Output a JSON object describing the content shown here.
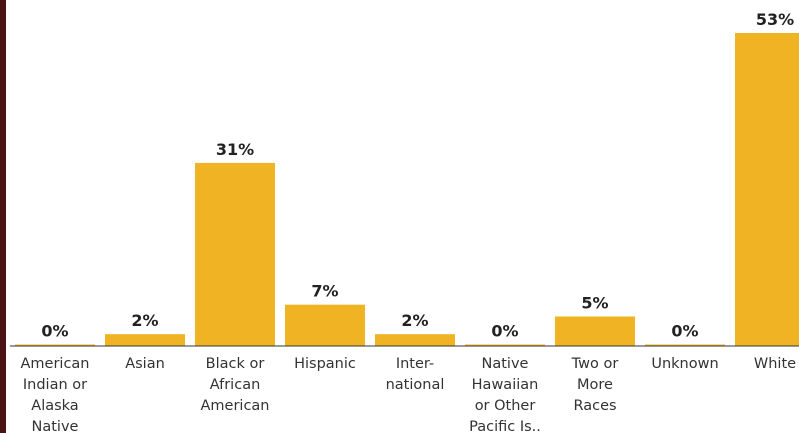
{
  "chart_data": {
    "type": "bar",
    "categories": [
      [
        "American",
        "Indian or",
        "Alaska",
        "Native"
      ],
      [
        "Asian"
      ],
      [
        "Black or",
        "African",
        "American"
      ],
      [
        "Hispanic"
      ],
      [
        "Inter-",
        "national"
      ],
      [
        "Native",
        "Hawaiian",
        "or Other",
        "Pacific Is.."
      ],
      [
        "Two or",
        "More",
        "Races"
      ],
      [
        "Unknown"
      ],
      [
        "White"
      ]
    ],
    "values": [
      0,
      2,
      31,
      7,
      2,
      0,
      5,
      0,
      53
    ],
    "data_labels": [
      "0%",
      "2%",
      "31%",
      "7%",
      "2%",
      "0%",
      "5%",
      "0%",
      "53%"
    ],
    "ylim": [
      0,
      53
    ],
    "bar_color": "#f0b323",
    "grid": false,
    "title": "",
    "xlabel": "",
    "ylabel": ""
  }
}
